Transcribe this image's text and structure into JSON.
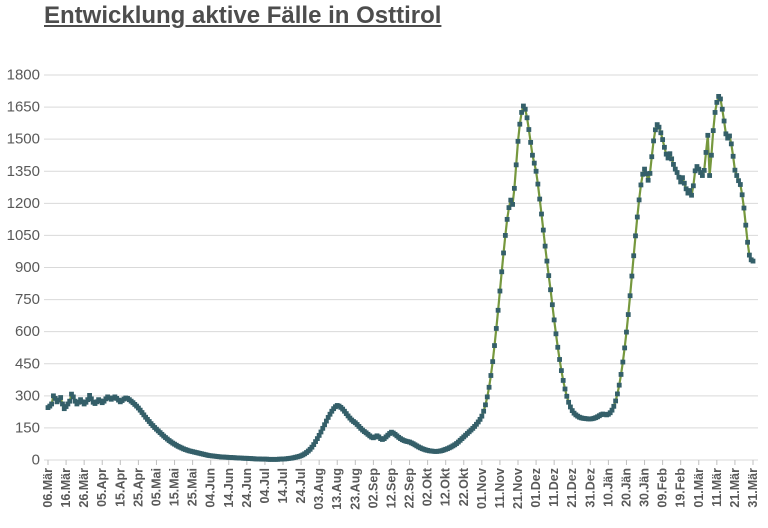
{
  "colors": {
    "background": "#ffffff",
    "title": "#4d4d4d",
    "axis_label": "#595959",
    "gridline": "#d9d9d9",
    "axis_tick": "#bfbfbf",
    "line": "#76983E",
    "marker": "#345F69"
  },
  "chart_data": {
    "type": "line",
    "title": "Entwicklung aktive Fälle in Osttirol",
    "xlabel": "",
    "ylabel": "",
    "ylim": [
      0,
      1800
    ],
    "y_ticks": [
      0,
      150,
      300,
      450,
      600,
      750,
      900,
      1050,
      1200,
      1350,
      1500,
      1650,
      1800
    ],
    "grid": "horizontal",
    "legend": "none",
    "marker": "square",
    "x_tick_step_days": 10,
    "x_tick_labels": [
      "06.Mär",
      "16.Mär",
      "26.Mär",
      "05.Apr",
      "15.Apr",
      "25.Apr",
      "05.Mai",
      "15.Mai",
      "25.Mai",
      "04.Jun",
      "14.Jun",
      "24.Jun",
      "04.Jul",
      "14.Jul",
      "24.Jul",
      "03.Aug",
      "13.Aug",
      "23.Aug",
      "02.Sep",
      "12.Sep",
      "22.Sep",
      "02.Okt",
      "12.Okt",
      "22.Okt",
      "01.Nov",
      "11.Nov",
      "21.Nov",
      "01.Dez",
      "11.Dez",
      "21.Dez",
      "31.Dez",
      "10.Jän",
      "20.Jän",
      "30.Jän",
      "09.Feb",
      "19.Feb",
      "01.Mär",
      "11.Mär",
      "21.Mär",
      "31.Mär"
    ],
    "values": [
      245,
      252,
      262,
      300,
      288,
      272,
      280,
      292,
      262,
      240,
      250,
      262,
      275,
      308,
      295,
      275,
      262,
      270,
      282,
      272,
      262,
      270,
      282,
      302,
      286,
      270,
      264,
      272,
      282,
      276,
      268,
      275,
      286,
      295,
      290,
      284,
      290,
      295,
      288,
      280,
      272,
      278,
      285,
      290,
      288,
      282,
      275,
      268,
      260,
      252,
      243,
      233,
      222,
      211,
      200,
      190,
      180,
      170,
      161,
      152,
      144,
      136,
      128,
      120,
      112,
      105,
      98,
      91,
      85,
      79,
      74,
      69,
      64,
      60,
      56,
      52,
      49,
      46,
      43,
      41,
      39,
      37,
      35,
      33,
      31,
      29,
      27,
      25,
      23,
      21,
      20,
      19,
      18,
      17,
      16,
      15,
      14,
      14,
      13,
      13,
      12,
      12,
      11,
      11,
      10,
      10,
      9,
      9,
      8,
      8,
      8,
      7,
      7,
      6,
      6,
      5,
      5,
      5,
      4,
      4,
      4,
      4,
      3,
      3,
      3,
      3,
      3,
      3,
      4,
      4,
      5,
      5,
      6,
      7,
      8,
      9,
      11,
      13,
      15,
      17,
      20,
      24,
      29,
      35,
      42,
      50,
      60,
      72,
      86,
      100,
      115,
      131,
      148,
      165,
      182,
      199,
      214,
      228,
      240,
      249,
      255,
      252,
      246,
      238,
      228,
      217,
      206,
      196,
      187,
      180,
      174,
      166,
      157,
      148,
      140,
      133,
      127,
      120,
      113,
      107,
      104,
      108,
      113,
      108,
      100,
      96,
      100,
      108,
      116,
      124,
      130,
      126,
      120,
      113,
      106,
      100,
      95,
      91,
      88,
      86,
      84,
      80,
      76,
      71,
      66,
      61,
      57,
      53,
      50,
      47,
      45,
      43,
      42,
      41,
      40,
      40,
      41,
      42,
      44,
      47,
      50,
      53,
      57,
      61,
      66,
      71,
      77,
      84,
      92,
      100,
      108,
      116,
      124,
      132,
      140,
      148,
      157,
      167,
      178,
      190,
      205,
      228,
      258,
      295,
      340,
      395,
      460,
      535,
      615,
      700,
      790,
      880,
      968,
      1050,
      1125,
      1180,
      1215,
      1195,
      1270,
      1380,
      1490,
      1570,
      1625,
      1655,
      1640,
      1600,
      1545,
      1485,
      1425,
      1388,
      1350,
      1290,
      1220,
      1150,
      1075,
      1000,
      930,
      862,
      796,
      726,
      655,
      590,
      527,
      470,
      418,
      372,
      332,
      298,
      270,
      248,
      231,
      219,
      211,
      205,
      200,
      197,
      195,
      194,
      193,
      192,
      192,
      193,
      195,
      198,
      202,
      207,
      212,
      215,
      213,
      211,
      214,
      221,
      233,
      251,
      276,
      309,
      350,
      400,
      458,
      524,
      598,
      680,
      768,
      860,
      955,
      1048,
      1136,
      1216,
      1286,
      1336,
      1360,
      1338,
      1308,
      1340,
      1418,
      1492,
      1544,
      1568,
      1556,
      1530,
      1498,
      1462,
      1430,
      1412,
      1432,
      1408,
      1382,
      1360,
      1344,
      1322,
      1300,
      1320,
      1294,
      1268,
      1248,
      1260,
      1238,
      1282,
      1352,
      1372,
      1360,
      1344,
      1330,
      1354,
      1438,
      1518,
      1330,
      1425,
      1540,
      1625,
      1672,
      1700,
      1688,
      1640,
      1585,
      1525,
      1505,
      1515,
      1478,
      1420,
      1355,
      1330,
      1306,
      1288,
      1240,
      1178,
      1098,
      1018,
      958,
      936,
      930
    ]
  }
}
